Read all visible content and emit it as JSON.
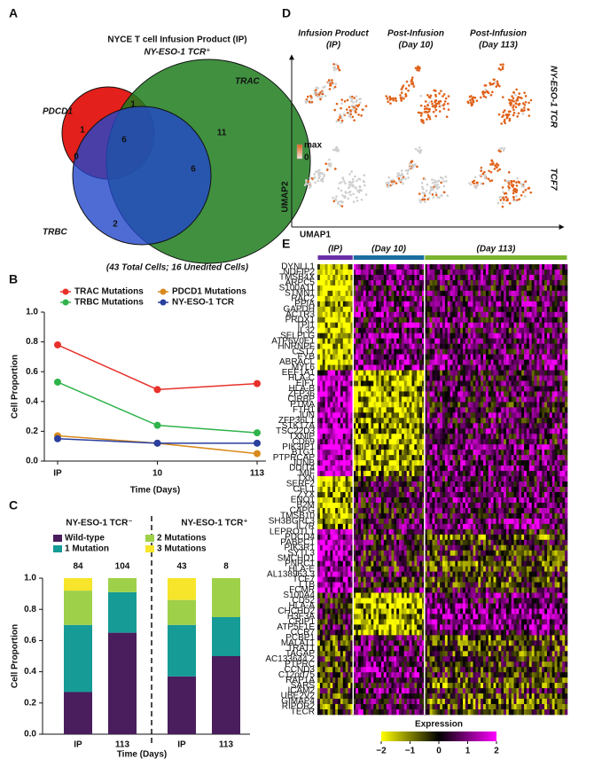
{
  "panel_labels": [
    "A",
    "B",
    "C",
    "D",
    "E"
  ],
  "chart_data": [
    {
      "type": "venn",
      "title": "NYCE T cell Infusion Product (IP)",
      "subtitle": "NY-ESO-1 TCR⁺",
      "sets": [
        {
          "name": "TRAC",
          "color": "#1e7d1e"
        },
        {
          "name": "PDCD1",
          "color": "#e3201b"
        },
        {
          "name": "TRBC",
          "color": "#2247c9"
        }
      ],
      "region_values": [
        11,
        1,
        1,
        6,
        0,
        6,
        2
      ],
      "note": "(43 Total Cells; 16 Unedited Cells)"
    },
    {
      "type": "line",
      "x_label": "Time (Days)",
      "y_label": "Cell Proportion",
      "categories": [
        "IP",
        "10",
        "113"
      ],
      "ylim": [
        0,
        1.0
      ],
      "yticks": [
        {
          "value": 0,
          "label": "0.0"
        },
        0.2,
        0.4,
        0.6,
        0.8,
        {
          "value": 1,
          "label": "1.0"
        }
      ],
      "series": [
        {
          "name": "TRAC Mutations",
          "color": "#e8312a",
          "values": [
            0.78,
            0.48,
            0.52
          ]
        },
        {
          "name": "TRBC Mutations",
          "color": "#2fb34a",
          "values": [
            0.53,
            0.24,
            0.19
          ]
        },
        {
          "name": "PDCD1 Mutations",
          "color": "#d98a1c",
          "values": [
            0.17,
            0.12,
            0.05
          ]
        },
        {
          "name": "NY-ESO-1 TCR",
          "color": "#2a3f9e",
          "values": [
            0.15,
            0.12,
            0.12
          ]
        }
      ]
    },
    {
      "type": "stacked_bar",
      "x_label": "Time (Days)",
      "y_label": "Cell Proportion",
      "groups": [
        "NY-ESO-1 TCR⁻",
        "NY-ESO-1 TCR⁺"
      ],
      "categories": [
        "IP",
        "113",
        "IP",
        "113"
      ],
      "counts": [
        84,
        104,
        43,
        8
      ],
      "ylim": [
        0,
        1.0
      ],
      "yticks": [
        {
          "value": 0,
          "label": "0.0"
        },
        0.2,
        0.4,
        0.6,
        0.8,
        {
          "value": 1,
          "label": "1.0"
        }
      ],
      "series": [
        {
          "name": "Wild-type",
          "color": "#4a1d5c",
          "values": [
            0.27,
            0.65,
            0.37,
            0.5
          ]
        },
        {
          "name": "1 Mutation",
          "color": "#169b97",
          "values": [
            0.43,
            0.26,
            0.33,
            0.25
          ]
        },
        {
          "name": "2 Mutations",
          "color": "#9fd04a",
          "values": [
            0.22,
            0.09,
            0.16,
            0.25
          ]
        },
        {
          "name": "3 Mutations",
          "color": "#f6e52a",
          "values": [
            0.08,
            0,
            0.14,
            0
          ]
        }
      ]
    },
    {
      "type": "umap",
      "titles": [
        [
          "Infusion Product",
          "(IP)"
        ],
        [
          "Post-Infusion",
          "(Day 10)"
        ],
        [
          "Post-Infusion",
          "(Day 113)"
        ]
      ],
      "title_colors": [
        "#6a2fa6",
        "#1b8a8c",
        "#7ab32e"
      ],
      "rows": [
        "NY-ESO-1 TCR",
        "TCF7"
      ],
      "x_label": "UMAP1",
      "y_label": "UMAP2",
      "legend_labels": [
        "max",
        "0"
      ]
    },
    {
      "type": "heatmap",
      "groups": [
        "(IP)",
        "(Day 10)",
        "(Day 113)"
      ],
      "group_colors": [
        "#6a2fa6",
        "#1b6fa0",
        "#7ab32e"
      ],
      "genes": [
        "DYNLL1",
        "NDFIP2",
        "TMSB4X",
        "ARPC5",
        "S100A11",
        "STMN1",
        "RAC2",
        "PPIA",
        "GAPDH",
        "ACTR3",
        "PRDX1",
        "TPI1",
        "IL32",
        "SELPLG",
        "ATP6V0E1",
        "HNRNPF",
        "CST7",
        "FYB",
        "ABRACL",
        "MYL6",
        "EEF1A1",
        "HLA-C",
        "EIF1",
        "HLA-B",
        "ZFP36",
        "CIRBP",
        "PTMA",
        "FTH1",
        "JUN",
        "ZFP36L1",
        "STK17A",
        "TSC22D3",
        "TXNIP",
        "CD69",
        "PIK3IP1",
        "BTG1",
        "PTPRCAP",
        "JUNB",
        "DDIT4",
        "MIF",
        "TXN",
        "SERF2",
        "CFL1",
        "ZYX",
        "ENO1",
        "B2M",
        "CAPG",
        "TMSB10",
        "SH3BGRL3",
        "IL7R",
        "LEPROTL1",
        "PDCD4",
        "PABPC1",
        "PIK3R1",
        "SYTL3",
        "SMCHD1",
        "PNRC1",
        "HLA-E",
        "AL138963.3",
        "TCF7",
        "LTB",
        "FCMR",
        "S100A4",
        "CD52",
        "HLA-A",
        "CHCHD2",
        "H3F3A",
        "CRIP1",
        "ATP5F1E",
        "CCR7",
        "PCBP1",
        "MALAT1",
        "TRAT1",
        "TAGAP",
        "AC133644.2",
        "PTPRC",
        "CCND3",
        "C12orf75",
        "RAP1A",
        "SARS",
        "ICAM2",
        "UBE2V2",
        "GIMAP4",
        "RIPOR2",
        "TECR"
      ],
      "colorbar_title": "Expression",
      "clim": [
        -2,
        2
      ],
      "colorbar_ticks": [
        {
          "value": -2,
          "label": "−2"
        },
        {
          "value": -1,
          "label": "−1"
        },
        0,
        1,
        2
      ]
    }
  ]
}
